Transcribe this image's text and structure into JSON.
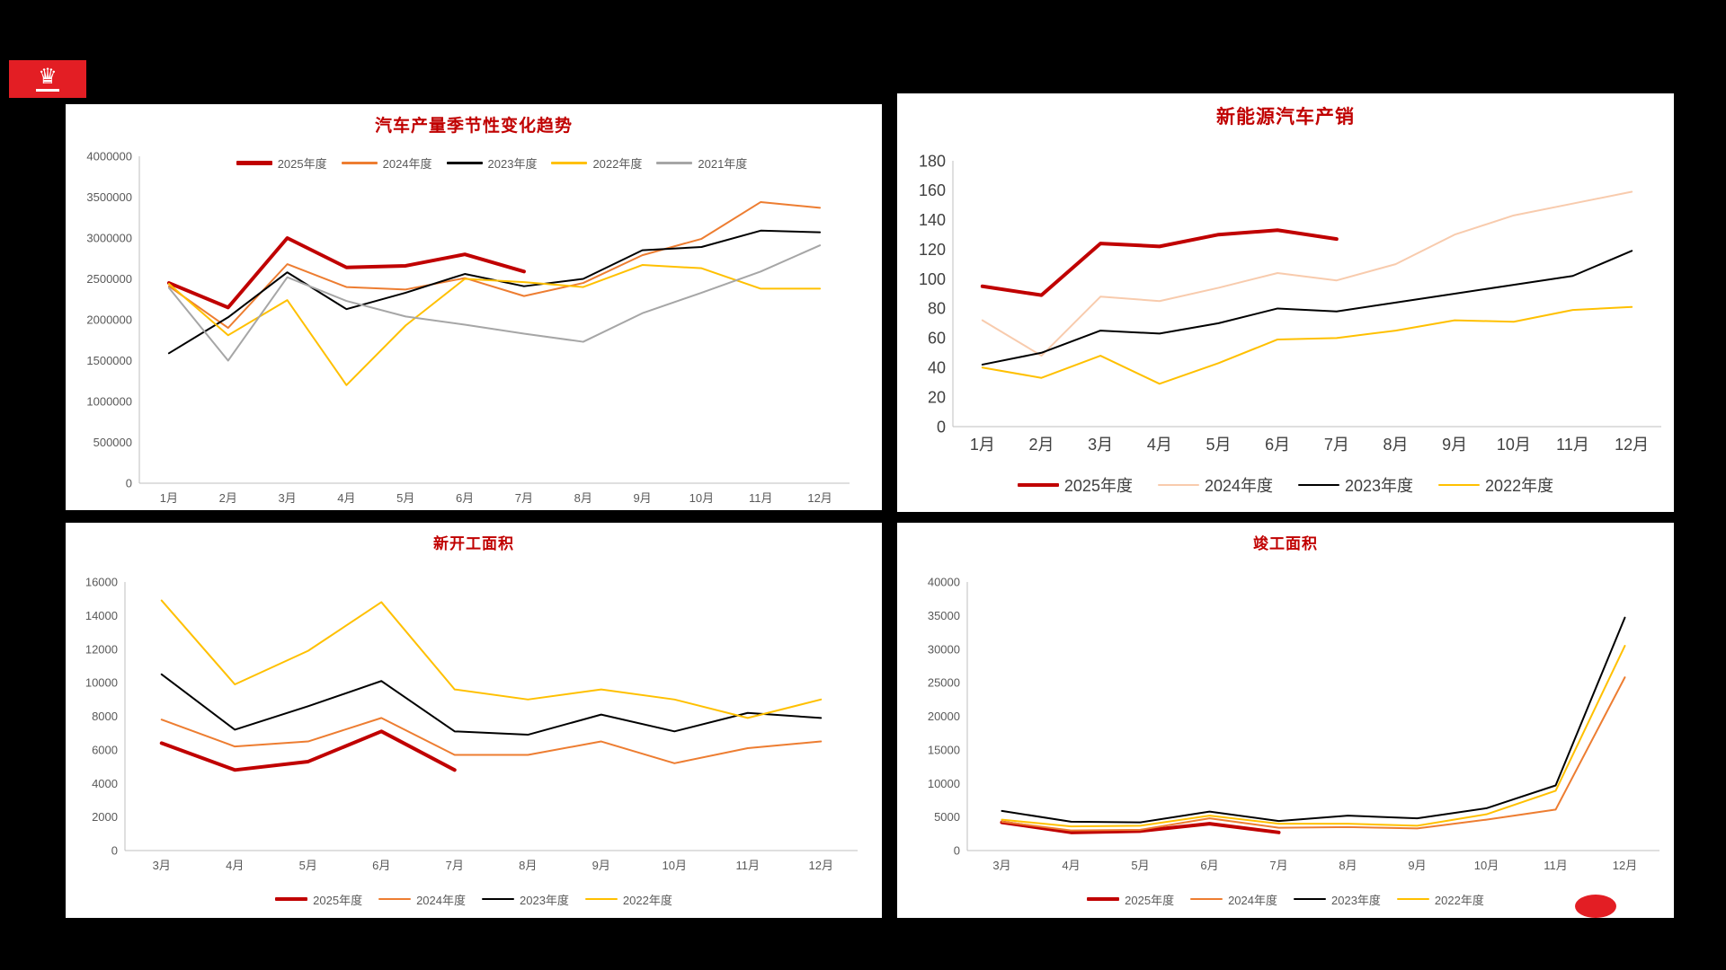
{
  "slide": {
    "background": "#000000",
    "panel_background": "#ffffff",
    "accent_red": "#c00000"
  },
  "logo": {
    "crown_icon": "♛",
    "background": "#e31e24"
  },
  "chart_data": [
    {
      "type": "line",
      "title": "汽车产量季节性变化趋势",
      "categories": [
        "1月",
        "2月",
        "3月",
        "4月",
        "5月",
        "6月",
        "7月",
        "8月",
        "9月",
        "10月",
        "11月",
        "12月"
      ],
      "ylim": [
        0,
        4000000
      ],
      "ytick_step": 500000,
      "legend_position": "top-inside",
      "grid": false,
      "series": [
        {
          "name": "2025年度",
          "color": "#c00000",
          "width": 4,
          "values": [
            2450000,
            2150000,
            3000000,
            2640000,
            2660000,
            2800000,
            2590000,
            null,
            null,
            null,
            null,
            null
          ]
        },
        {
          "name": "2024年度",
          "color": "#ed7d31",
          "width": 2,
          "values": [
            2410000,
            1900000,
            2680000,
            2400000,
            2370000,
            2510000,
            2290000,
            2450000,
            2790000,
            2990000,
            3440000,
            3370000
          ]
        },
        {
          "name": "2023年度",
          "color": "#000000",
          "width": 2,
          "values": [
            1590000,
            2030000,
            2580000,
            2130000,
            2330000,
            2560000,
            2410000,
            2500000,
            2850000,
            2890000,
            3090000,
            3070000
          ]
        },
        {
          "name": "2022年度",
          "color": "#ffc000",
          "width": 2,
          "values": [
            2440000,
            1810000,
            2240000,
            1200000,
            1930000,
            2500000,
            2460000,
            2400000,
            2670000,
            2630000,
            2380000,
            2380000
          ]
        },
        {
          "name": "2021年度",
          "color": "#a6a6a6",
          "width": 2,
          "values": [
            2390000,
            1500000,
            2520000,
            2230000,
            2040000,
            1940000,
            1830000,
            1730000,
            2080000,
            2330000,
            2590000,
            2910000
          ]
        }
      ]
    },
    {
      "type": "line",
      "title": "新能源汽车产销",
      "categories": [
        "1月",
        "2月",
        "3月",
        "4月",
        "5月",
        "6月",
        "7月",
        "8月",
        "9月",
        "10月",
        "11月",
        "12月"
      ],
      "ylim": [
        0,
        180
      ],
      "ytick_step": 20,
      "legend_position": "bottom",
      "grid": false,
      "series": [
        {
          "name": "2025年度",
          "color": "#c00000",
          "width": 4,
          "values": [
            95,
            89,
            124,
            122,
            130,
            133,
            127,
            null,
            null,
            null,
            null,
            null
          ]
        },
        {
          "name": "2024年度",
          "color": "#f8cbad",
          "width": 2,
          "values": [
            72,
            48,
            88,
            85,
            94,
            104,
            99,
            110,
            130,
            143,
            151,
            159
          ]
        },
        {
          "name": "2023年度",
          "color": "#000000",
          "width": 2,
          "values": [
            42,
            50,
            65,
            63,
            70,
            80,
            78,
            84,
            90,
            96,
            102,
            119
          ]
        },
        {
          "name": "2022年度",
          "color": "#ffc000",
          "width": 2,
          "values": [
            40,
            33,
            48,
            29,
            43,
            59,
            60,
            65,
            72,
            71,
            79,
            81
          ]
        }
      ]
    },
    {
      "type": "line",
      "title": "新开工面积",
      "categories": [
        "3月",
        "4月",
        "5月",
        "6月",
        "7月",
        "8月",
        "9月",
        "10月",
        "11月",
        "12月"
      ],
      "ylim": [
        0,
        16000
      ],
      "ytick_step": 2000,
      "legend_position": "bottom",
      "grid": false,
      "series": [
        {
          "name": "2025年度",
          "color": "#c00000",
          "width": 4,
          "values": [
            6400,
            4800,
            5300,
            7100,
            4800,
            null,
            null,
            null,
            null,
            null
          ]
        },
        {
          "name": "2024年度",
          "color": "#ed7d31",
          "width": 2,
          "values": [
            7800,
            6200,
            6500,
            7900,
            5700,
            5700,
            6500,
            5200,
            6100,
            6500
          ]
        },
        {
          "name": "2023年度",
          "color": "#000000",
          "width": 2,
          "values": [
            10500,
            7200,
            8600,
            10100,
            7100,
            6900,
            8100,
            7100,
            8200,
            7900
          ]
        },
        {
          "name": "2022年度",
          "color": "#ffc000",
          "width": 2,
          "values": [
            14900,
            9900,
            11900,
            14800,
            9600,
            9000,
            9600,
            9000,
            7900,
            9000
          ]
        }
      ]
    },
    {
      "type": "line",
      "title": "竣工面积",
      "categories": [
        "3月",
        "4月",
        "5月",
        "6月",
        "7月",
        "8月",
        "9月",
        "10月",
        "11月",
        "12月"
      ],
      "ylim": [
        0,
        40000
      ],
      "ytick_step": 5000,
      "legend_position": "bottom",
      "grid": false,
      "series": [
        {
          "name": "2025年度",
          "color": "#c00000",
          "width": 4,
          "values": [
            4200,
            2700,
            2900,
            4000,
            2700,
            null,
            null,
            null,
            null,
            null
          ]
        },
        {
          "name": "2024年度",
          "color": "#ed7d31",
          "width": 2,
          "values": [
            4300,
            3000,
            3100,
            4800,
            3400,
            3500,
            3300,
            4600,
            6100,
            25800
          ]
        },
        {
          "name": "2023年度",
          "color": "#000000",
          "width": 2,
          "values": [
            5900,
            4300,
            4200,
            5800,
            4400,
            5200,
            4800,
            6300,
            9700,
            34700
          ]
        },
        {
          "name": "2022年度",
          "color": "#ffc000",
          "width": 2,
          "values": [
            4600,
            3600,
            3700,
            5200,
            4000,
            4000,
            3700,
            5400,
            8900,
            30500
          ]
        }
      ]
    }
  ]
}
